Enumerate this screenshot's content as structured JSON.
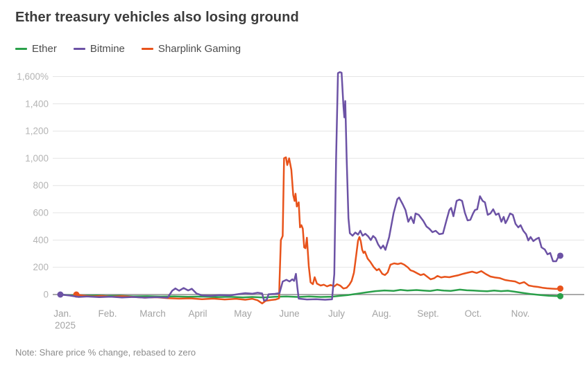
{
  "chart_data": {
    "type": "line",
    "title": "Ether treasury vehicles also losing ground",
    "note": "Note: Share price % change, rebased to zero",
    "unit": "percent change, rebased to zero",
    "x_axis": {
      "months": [
        "Jan.",
        "Feb.",
        "March",
        "April",
        "May",
        "June",
        "July",
        "Aug.",
        "Sept.",
        "Oct.",
        "Nov."
      ],
      "year_label": "2025"
    },
    "y_axis": {
      "ticks": [
        {
          "label": "1,600%",
          "value": 1600
        },
        {
          "label": "1,400",
          "value": 1400
        },
        {
          "label": "1,200",
          "value": 1200
        },
        {
          "label": "1,000",
          "value": 1000
        },
        {
          "label": "800",
          "value": 800
        },
        {
          "label": "600",
          "value": 600
        },
        {
          "label": "400",
          "value": 400
        },
        {
          "label": "200",
          "value": 200
        },
        {
          "label": "0",
          "value": 0
        }
      ],
      "grid": true,
      "zero_line": true
    },
    "colors": {
      "ether": "#2AA04A",
      "bitmine": "#6C52A5",
      "sharplink": "#E8531B",
      "grid": "#e4e4e4",
      "zero_line": "#8d8d8d",
      "y_tick_text": "#b4b4b4",
      "x_tick_text": "#a3a3a3",
      "title_text": "#3b3b3b"
    },
    "series": [
      {
        "name": "Ether",
        "color": "#2AA04A",
        "start_marker": false,
        "end_marker": true,
        "points": [
          [
            0,
            0
          ],
          [
            0.2,
            -5
          ],
          [
            0.5,
            -8
          ],
          [
            0.8,
            -6
          ],
          [
            1.0,
            -10
          ],
          [
            1.3,
            -9
          ],
          [
            1.6,
            -13
          ],
          [
            1.9,
            -12
          ],
          [
            2.2,
            -15
          ],
          [
            2.5,
            -13
          ],
          [
            2.8,
            -17
          ],
          [
            3.1,
            -15
          ],
          [
            3.4,
            -19
          ],
          [
            3.7,
            -17
          ],
          [
            4.0,
            -21
          ],
          [
            4.2,
            -18
          ],
          [
            4.45,
            -22
          ],
          [
            4.7,
            -17
          ],
          [
            4.95,
            -14
          ],
          [
            5.2,
            -18
          ],
          [
            5.45,
            -14
          ],
          [
            5.7,
            -18
          ],
          [
            5.95,
            -16
          ],
          [
            6.1,
            -10
          ],
          [
            6.3,
            -4
          ],
          [
            6.5,
            6
          ],
          [
            6.7,
            16
          ],
          [
            6.9,
            25
          ],
          [
            7.1,
            30
          ],
          [
            7.3,
            27
          ],
          [
            7.45,
            34
          ],
          [
            7.6,
            29
          ],
          [
            7.8,
            33
          ],
          [
            7.95,
            29
          ],
          [
            8.1,
            26
          ],
          [
            8.25,
            34
          ],
          [
            8.4,
            29
          ],
          [
            8.55,
            27
          ],
          [
            8.75,
            36
          ],
          [
            8.9,
            31
          ],
          [
            9.05,
            29
          ],
          [
            9.2,
            26
          ],
          [
            9.35,
            24
          ],
          [
            9.5,
            29
          ],
          [
            9.65,
            25
          ],
          [
            9.8,
            28
          ],
          [
            9.95,
            21
          ],
          [
            10.1,
            13
          ],
          [
            10.3,
            4
          ],
          [
            10.5,
            -3
          ],
          [
            10.7,
            -9
          ],
          [
            10.95,
            -12
          ]
        ]
      },
      {
        "name": "Sharplink Gaming",
        "color": "#E8531B",
        "start_marker": true,
        "end_marker": true,
        "points": [
          [
            0.35,
            0
          ],
          [
            0.5,
            -8
          ],
          [
            0.7,
            -14
          ],
          [
            0.9,
            -10
          ],
          [
            1.1,
            -17
          ],
          [
            1.35,
            -12
          ],
          [
            1.6,
            -18
          ],
          [
            1.85,
            -23
          ],
          [
            2.1,
            -20
          ],
          [
            2.35,
            -27
          ],
          [
            2.6,
            -30
          ],
          [
            2.85,
            -28
          ],
          [
            3.1,
            -34
          ],
          [
            3.35,
            -30
          ],
          [
            3.6,
            -36
          ],
          [
            3.85,
            -31
          ],
          [
            4.05,
            -38
          ],
          [
            4.2,
            -31
          ],
          [
            4.32,
            -42
          ],
          [
            4.42,
            -65
          ],
          [
            4.5,
            -46
          ],
          [
            4.62,
            -40
          ],
          [
            4.72,
            -36
          ],
          [
            4.79,
            -28
          ],
          [
            4.8,
            90
          ],
          [
            4.83,
            400
          ],
          [
            4.87,
            430
          ],
          [
            4.9,
            1000
          ],
          [
            4.94,
            1007
          ],
          [
            4.97,
            950
          ],
          [
            5.01,
            1000
          ],
          [
            5.06,
            915
          ],
          [
            5.1,
            730
          ],
          [
            5.13,
            687
          ],
          [
            5.15,
            740
          ],
          [
            5.18,
            646
          ],
          [
            5.22,
            677
          ],
          [
            5.25,
            493
          ],
          [
            5.28,
            509
          ],
          [
            5.31,
            483
          ],
          [
            5.34,
            346
          ],
          [
            5.37,
            340
          ],
          [
            5.4,
            417
          ],
          [
            5.44,
            210
          ],
          [
            5.48,
            90
          ],
          [
            5.53,
            76
          ],
          [
            5.57,
            127
          ],
          [
            5.62,
            80
          ],
          [
            5.7,
            66
          ],
          [
            5.77,
            72
          ],
          [
            5.84,
            60
          ],
          [
            5.92,
            70
          ],
          [
            6.0,
            60
          ],
          [
            6.06,
            76
          ],
          [
            6.13,
            65
          ],
          [
            6.2,
            44
          ],
          [
            6.27,
            50
          ],
          [
            6.33,
            72
          ],
          [
            6.38,
            100
          ],
          [
            6.43,
            160
          ],
          [
            6.48,
            290
          ],
          [
            6.52,
            395
          ],
          [
            6.55,
            422
          ],
          [
            6.58,
            390
          ],
          [
            6.61,
            330
          ],
          [
            6.64,
            305
          ],
          [
            6.67,
            316
          ],
          [
            6.73,
            264
          ],
          [
            6.79,
            239
          ],
          [
            6.86,
            203
          ],
          [
            6.93,
            178
          ],
          [
            6.98,
            188
          ],
          [
            7.05,
            152
          ],
          [
            7.11,
            143
          ],
          [
            7.17,
            163
          ],
          [
            7.23,
            219
          ],
          [
            7.31,
            229
          ],
          [
            7.39,
            224
          ],
          [
            7.46,
            230
          ],
          [
            7.53,
            219
          ],
          [
            7.61,
            200
          ],
          [
            7.67,
            178
          ],
          [
            7.74,
            170
          ],
          [
            7.82,
            155
          ],
          [
            7.89,
            143
          ],
          [
            7.96,
            150
          ],
          [
            8.03,
            132
          ],
          [
            8.11,
            112
          ],
          [
            8.19,
            120
          ],
          [
            8.26,
            137
          ],
          [
            8.34,
            125
          ],
          [
            8.42,
            130
          ],
          [
            8.52,
            127
          ],
          [
            8.62,
            135
          ],
          [
            8.72,
            142
          ],
          [
            8.82,
            152
          ],
          [
            8.92,
            160
          ],
          [
            9.02,
            168
          ],
          [
            9.12,
            158
          ],
          [
            9.22,
            172
          ],
          [
            9.32,
            150
          ],
          [
            9.42,
            132
          ],
          [
            9.52,
            125
          ],
          [
            9.62,
            121
          ],
          [
            9.74,
            107
          ],
          [
            9.86,
            100
          ],
          [
            9.96,
            96
          ],
          [
            10.06,
            81
          ],
          [
            10.16,
            91
          ],
          [
            10.26,
            66
          ],
          [
            10.36,
            60
          ],
          [
            10.46,
            56
          ],
          [
            10.56,
            50
          ],
          [
            10.66,
            46
          ],
          [
            10.76,
            43
          ],
          [
            10.86,
            41
          ],
          [
            10.95,
            44
          ]
        ]
      },
      {
        "name": "Bitmine",
        "color": "#6C52A5",
        "start_marker": true,
        "end_marker": true,
        "points": [
          [
            0,
            0
          ],
          [
            0.2,
            -7
          ],
          [
            0.4,
            -18
          ],
          [
            0.6,
            -14
          ],
          [
            0.85,
            -19
          ],
          [
            1.1,
            -16
          ],
          [
            1.35,
            -22
          ],
          [
            1.6,
            -18
          ],
          [
            1.85,
            -23
          ],
          [
            2.1,
            -19
          ],
          [
            2.35,
            -23
          ],
          [
            2.45,
            28
          ],
          [
            2.52,
            45
          ],
          [
            2.6,
            28
          ],
          [
            2.7,
            48
          ],
          [
            2.8,
            30
          ],
          [
            2.88,
            42
          ],
          [
            2.98,
            8
          ],
          [
            3.1,
            -6
          ],
          [
            3.3,
            -9
          ],
          [
            3.5,
            -4
          ],
          [
            3.7,
            -7
          ],
          [
            3.9,
            3
          ],
          [
            4.05,
            10
          ],
          [
            4.2,
            6
          ],
          [
            4.32,
            13
          ],
          [
            4.42,
            8
          ],
          [
            4.46,
            -45
          ],
          [
            4.52,
            -38
          ],
          [
            4.56,
            2
          ],
          [
            4.7,
            5
          ],
          [
            4.8,
            10
          ],
          [
            4.87,
            95
          ],
          [
            4.95,
            108
          ],
          [
            5.02,
            96
          ],
          [
            5.08,
            112
          ],
          [
            5.12,
            100
          ],
          [
            5.16,
            152
          ],
          [
            5.19,
            55
          ],
          [
            5.22,
            -30
          ],
          [
            5.4,
            -36
          ],
          [
            5.6,
            -34
          ],
          [
            5.8,
            -38
          ],
          [
            5.95,
            -35
          ],
          [
            6.0,
            150
          ],
          [
            6.04,
            1000
          ],
          [
            6.08,
            1625
          ],
          [
            6.12,
            1632
          ],
          [
            6.16,
            1628
          ],
          [
            6.2,
            1380
          ],
          [
            6.22,
            1300
          ],
          [
            6.24,
            1420
          ],
          [
            6.27,
            1000
          ],
          [
            6.31,
            560
          ],
          [
            6.34,
            450
          ],
          [
            6.4,
            432
          ],
          [
            6.46,
            455
          ],
          [
            6.52,
            440
          ],
          [
            6.57,
            468
          ],
          [
            6.62,
            432
          ],
          [
            6.68,
            446
          ],
          [
            6.74,
            428
          ],
          [
            6.8,
            400
          ],
          [
            6.85,
            430
          ],
          [
            6.9,
            415
          ],
          [
            6.96,
            368
          ],
          [
            7.02,
            338
          ],
          [
            7.07,
            360
          ],
          [
            7.12,
            328
          ],
          [
            7.2,
            420
          ],
          [
            7.3,
            598
          ],
          [
            7.38,
            700
          ],
          [
            7.42,
            712
          ],
          [
            7.5,
            662
          ],
          [
            7.56,
            620
          ],
          [
            7.62,
            534
          ],
          [
            7.68,
            570
          ],
          [
            7.74,
            524
          ],
          [
            7.78,
            595
          ],
          [
            7.85,
            585
          ],
          [
            7.95,
            540
          ],
          [
            8.02,
            499
          ],
          [
            8.08,
            483
          ],
          [
            8.15,
            458
          ],
          [
            8.22,
            468
          ],
          [
            8.3,
            443
          ],
          [
            8.38,
            448
          ],
          [
            8.46,
            549
          ],
          [
            8.52,
            620
          ],
          [
            8.56,
            636
          ],
          [
            8.61,
            575
          ],
          [
            8.68,
            687
          ],
          [
            8.74,
            697
          ],
          [
            8.8,
            687
          ],
          [
            8.86,
            600
          ],
          [
            8.92,
            544
          ],
          [
            8.98,
            549
          ],
          [
            9.04,
            595
          ],
          [
            9.08,
            620
          ],
          [
            9.13,
            626
          ],
          [
            9.19,
            722
          ],
          [
            9.25,
            687
          ],
          [
            9.3,
            677
          ],
          [
            9.36,
            585
          ],
          [
            9.42,
            595
          ],
          [
            9.48,
            626
          ],
          [
            9.54,
            585
          ],
          [
            9.6,
            595
          ],
          [
            9.66,
            534
          ],
          [
            9.71,
            570
          ],
          [
            9.75,
            524
          ],
          [
            9.79,
            549
          ],
          [
            9.85,
            595
          ],
          [
            9.91,
            585
          ],
          [
            9.97,
            519
          ],
          [
            10.03,
            493
          ],
          [
            10.08,
            509
          ],
          [
            10.14,
            468
          ],
          [
            10.2,
            443
          ],
          [
            10.25,
            397
          ],
          [
            10.3,
            422
          ],
          [
            10.36,
            392
          ],
          [
            10.42,
            407
          ],
          [
            10.48,
            417
          ],
          [
            10.54,
            346
          ],
          [
            10.61,
            331
          ],
          [
            10.67,
            295
          ],
          [
            10.73,
            305
          ],
          [
            10.79,
            244
          ],
          [
            10.86,
            244
          ],
          [
            10.91,
            280
          ],
          [
            10.95,
            285
          ]
        ]
      }
    ],
    "legend_order": [
      0,
      2,
      1
    ]
  }
}
